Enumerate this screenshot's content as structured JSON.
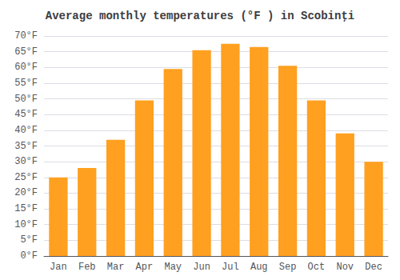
{
  "chart_data": {
    "type": "bar",
    "title": "Average monthly temperatures (°F ) in Scobinţi",
    "categories": [
      "Jan",
      "Feb",
      "Mar",
      "Apr",
      "May",
      "Jun",
      "Jul",
      "Aug",
      "Sep",
      "Oct",
      "Nov",
      "Dec"
    ],
    "values": [
      25,
      28,
      37,
      49.5,
      59.5,
      65.5,
      67.5,
      66.5,
      60.5,
      49.5,
      39,
      30
    ],
    "color": "#FFA020",
    "ylim": [
      0,
      70
    ],
    "yticks": [
      {
        "value": 0,
        "label": "0°F"
      },
      {
        "value": 5,
        "label": "5°F"
      },
      {
        "value": 10,
        "label": "10°F"
      },
      {
        "value": 15,
        "label": "15°F"
      },
      {
        "value": 20,
        "label": "20°F"
      },
      {
        "value": 25,
        "label": "25°F"
      },
      {
        "value": 30,
        "label": "30°F"
      },
      {
        "value": 35,
        "label": "35°F"
      },
      {
        "value": 40,
        "label": "40°F"
      },
      {
        "value": 45,
        "label": "45°F"
      },
      {
        "value": 50,
        "label": "50°F"
      },
      {
        "value": 55,
        "label": "55°F"
      },
      {
        "value": 60,
        "label": "60°F"
      },
      {
        "value": 65,
        "label": "65°F"
      },
      {
        "value": 70,
        "label": "70°F"
      }
    ],
    "grid": true
  }
}
